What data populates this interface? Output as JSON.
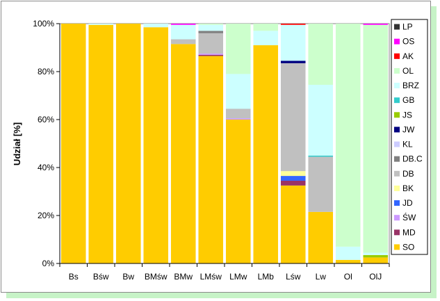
{
  "chart_data": {
    "type": "bar",
    "stacked": true,
    "ylabel": "Udział [%]",
    "xlabel": "",
    "ylim": [
      0,
      100
    ],
    "yticks": [
      "0%",
      "20%",
      "40%",
      "60%",
      "80%",
      "100%"
    ],
    "grid": false,
    "legend_position": "right",
    "categories": [
      "Bs",
      "Bśw",
      "Bw",
      "BMśw",
      "BMw",
      "LMśw",
      "LMw",
      "LMb",
      "Lśw",
      "Lw",
      "Ol",
      "OlJ"
    ],
    "series": [
      {
        "name": "SO",
        "color": "#FFCC00",
        "values": [
          100,
          99.5,
          100,
          98.5,
          91.5,
          86.5,
          60,
          91,
          32.5,
          21.5,
          1.5,
          2.5
        ]
      },
      {
        "name": "MD",
        "color": "#993366",
        "values": [
          0,
          0,
          0,
          0,
          0,
          0.5,
          0,
          0,
          2,
          0,
          0,
          0
        ]
      },
      {
        "name": "ŚW",
        "color": "#CC99FF",
        "values": [
          0,
          0,
          0,
          0,
          0,
          0.5,
          0.5,
          0,
          0,
          0,
          0,
          0
        ]
      },
      {
        "name": "JD",
        "color": "#3366FF",
        "values": [
          0,
          0,
          0,
          0,
          0,
          0,
          0,
          0,
          2,
          0,
          0,
          0
        ]
      },
      {
        "name": "BK",
        "color": "#FFFF99",
        "values": [
          0,
          0,
          0,
          0,
          0,
          0,
          0,
          0,
          2,
          0,
          0,
          0
        ]
      },
      {
        "name": "DB",
        "color": "#C0C0C0",
        "values": [
          0,
          0,
          0,
          0,
          2,
          8.5,
          4,
          0,
          45,
          23,
          0,
          0
        ]
      },
      {
        "name": "DB.C",
        "color": "#808080",
        "values": [
          0,
          0,
          0,
          0,
          0,
          1,
          0,
          0,
          0,
          0,
          0,
          0
        ]
      },
      {
        "name": "KL",
        "color": "#CCCCFF",
        "values": [
          0,
          0,
          0,
          0,
          0,
          0,
          0,
          0,
          0,
          0,
          0,
          0
        ]
      },
      {
        "name": "JW",
        "color": "#000080",
        "values": [
          0,
          0,
          0,
          0,
          0,
          0,
          0,
          0,
          1,
          0,
          0,
          0
        ]
      },
      {
        "name": "JS",
        "color": "#99CC00",
        "values": [
          0,
          0,
          0,
          0,
          0,
          0,
          0,
          0,
          0,
          0,
          0,
          1
        ]
      },
      {
        "name": "GB",
        "color": "#33CCCC",
        "values": [
          0,
          0,
          0,
          0,
          0,
          0,
          0,
          0,
          0,
          0.5,
          0,
          0
        ]
      },
      {
        "name": "BRZ",
        "color": "#CCFFFF",
        "values": [
          0,
          0.5,
          0,
          1.5,
          6,
          2.5,
          14.5,
          6,
          15,
          29.5,
          5.5,
          1
        ]
      },
      {
        "name": "OL",
        "color": "#CCFFCC",
        "values": [
          0,
          0,
          0,
          0,
          0,
          0.5,
          21,
          3,
          0,
          25.5,
          93,
          95
        ]
      },
      {
        "name": "AK",
        "color": "#FF0000",
        "values": [
          0,
          0,
          0,
          0,
          0,
          0,
          0,
          0,
          0.5,
          0,
          0,
          0
        ]
      },
      {
        "name": "OS",
        "color": "#FF00FF",
        "values": [
          0,
          0,
          0,
          0,
          0.5,
          0,
          0,
          0,
          0,
          0,
          0,
          0.5
        ]
      },
      {
        "name": "LP",
        "color": "#333333",
        "values": [
          0,
          0,
          0,
          0,
          0,
          0,
          0,
          0,
          0,
          0,
          0,
          0
        ]
      }
    ]
  }
}
